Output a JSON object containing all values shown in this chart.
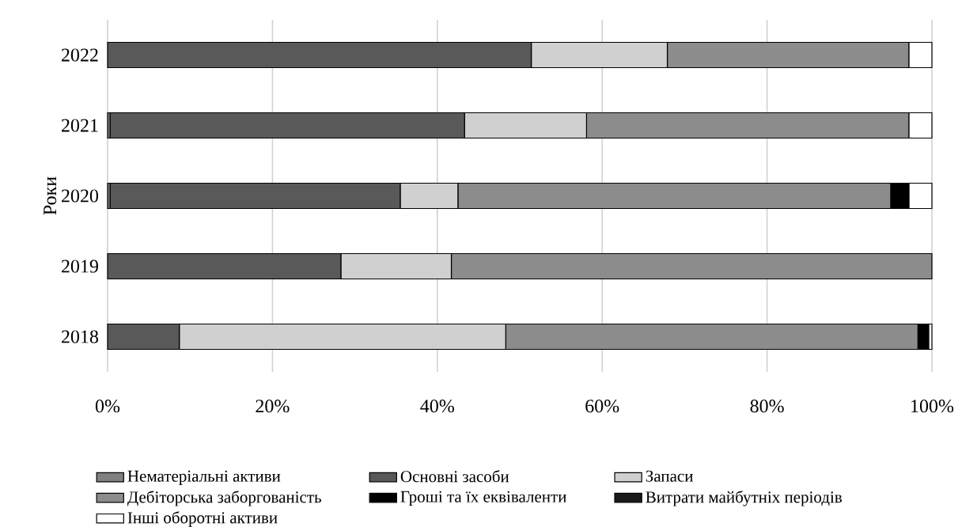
{
  "chart_data": {
    "type": "bar",
    "orientation": "horizontal",
    "stacked": true,
    "ylabel": "Роки",
    "categories": [
      "2022",
      "2021",
      "2020",
      "2019",
      "2018"
    ],
    "series": [
      {
        "name": "Нематеріальні активи",
        "color": "#808080",
        "values": [
          0,
          0.3,
          0.3,
          0,
          0
        ]
      },
      {
        "name": "Основні засоби",
        "color": "#595959",
        "values": [
          51.4,
          43.0,
          35.2,
          28.3,
          8.7
        ]
      },
      {
        "name": "Запаси",
        "color": "#d0d0d0",
        "values": [
          16.5,
          14.8,
          7.0,
          13.4,
          39.6
        ]
      },
      {
        "name": "Дебіторська заборгованість",
        "color": "#8c8c8c",
        "values": [
          29.3,
          39.1,
          52.5,
          58.3,
          50.0
        ]
      },
      {
        "name": "Гроші та їх еквіваленти",
        "color": "#000000",
        "values": [
          0,
          0,
          2.2,
          0,
          1.3
        ]
      },
      {
        "name": "Витрати майбутніх періодів",
        "color": "#1a1a1a",
        "values": [
          0,
          0,
          0,
          0,
          0
        ]
      },
      {
        "name": "Інші оборотні активи",
        "color": "#ffffff",
        "values": [
          2.8,
          2.8,
          2.8,
          0,
          0.4
        ]
      }
    ],
    "xlim": [
      0,
      100
    ],
    "xticks": [
      {
        "value": 0,
        "label": "0%"
      },
      {
        "value": 20,
        "label": "20%"
      },
      {
        "value": 40,
        "label": "40%"
      },
      {
        "value": 60,
        "label": "60%"
      },
      {
        "value": 80,
        "label": "80%"
      },
      {
        "value": 100,
        "label": "100%"
      }
    ],
    "grid": "x",
    "legend": "bottom"
  }
}
